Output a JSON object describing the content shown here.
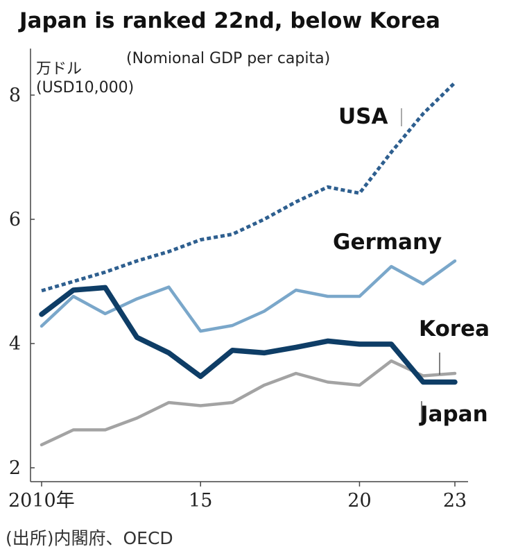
{
  "chart_data": {
    "type": "line",
    "title": "Japan is ranked 22nd, below Korea",
    "subtitle": "(Nomional GDP per capita)",
    "ylabel": "万ドル",
    "ylabel_sub": "(USD10,000)",
    "ylim": [
      2,
      8.6
    ],
    "xlim": [
      2010,
      2023
    ],
    "yticks": [
      2,
      4,
      6,
      8
    ],
    "xticks": [
      {
        "value": 2010,
        "label": "2010年"
      },
      {
        "value": 2015,
        "label": "15"
      },
      {
        "value": 2020,
        "label": "20"
      },
      {
        "value": 2023,
        "label": "23"
      }
    ],
    "x": [
      2010,
      2011,
      2012,
      2013,
      2014,
      2015,
      2016,
      2017,
      2018,
      2019,
      2020,
      2021,
      2022,
      2023
    ],
    "series": [
      {
        "name": "USA",
        "color": "#2e5f8f",
        "style": "dotted",
        "values": [
          4.85,
          5.0,
          5.15,
          5.33,
          5.48,
          5.67,
          5.76,
          6.0,
          6.28,
          6.52,
          6.42,
          7.08,
          7.7,
          8.2
        ]
      },
      {
        "name": "Germany",
        "color": "#7aa7ca",
        "style": "solid",
        "values": [
          4.28,
          4.76,
          4.48,
          4.72,
          4.91,
          4.2,
          4.29,
          4.52,
          4.86,
          4.76,
          4.76,
          5.24,
          4.96,
          5.33
        ]
      },
      {
        "name": "Korea",
        "color": "#a3a3a3",
        "style": "solid",
        "values": [
          2.37,
          2.61,
          2.61,
          2.8,
          3.05,
          3.0,
          3.05,
          3.33,
          3.52,
          3.38,
          3.33,
          3.72,
          3.48,
          3.52
        ]
      },
      {
        "name": "Japan",
        "color": "#0e3d66",
        "style": "solid",
        "values": [
          4.47,
          4.86,
          4.9,
          4.1,
          3.85,
          3.47,
          3.89,
          3.85,
          3.94,
          4.04,
          3.99,
          3.99,
          3.38,
          3.38
        ]
      }
    ],
    "source": "(出所)内閣府、OECD"
  }
}
